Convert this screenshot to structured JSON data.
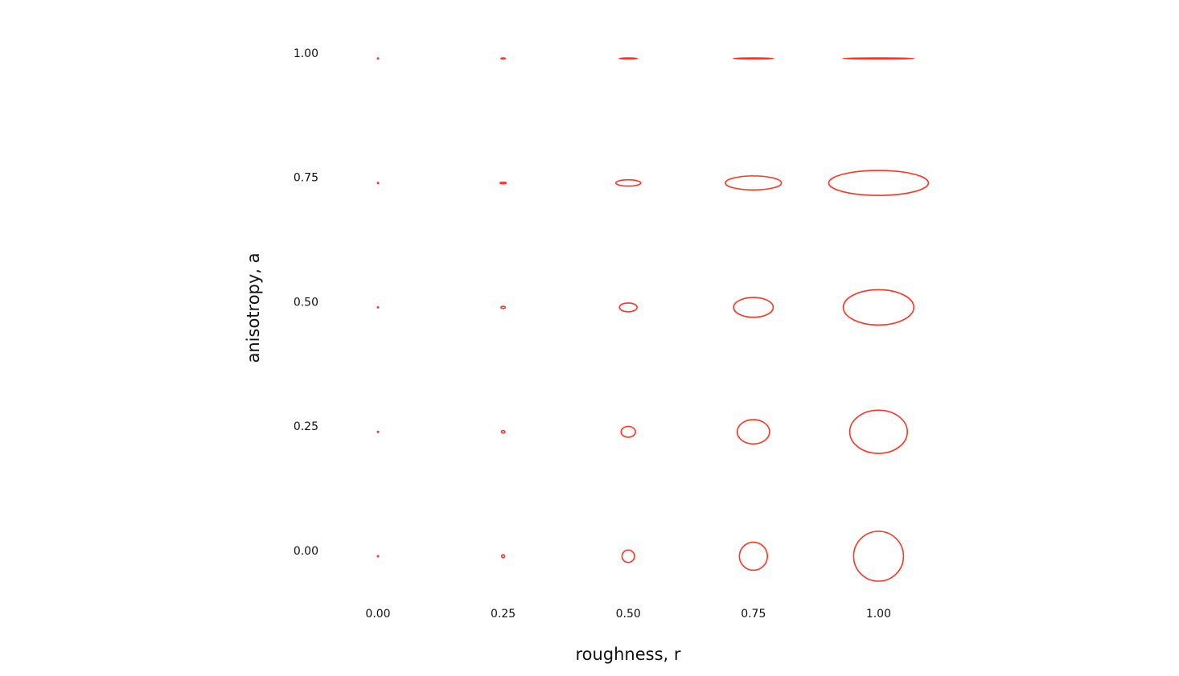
{
  "chart_data": {
    "type": "scatter",
    "title": "",
    "xlabel": "roughness, r",
    "ylabel": "anisotropy, a",
    "x_ticks": [
      "0.00",
      "0.25",
      "0.50",
      "0.75",
      "1.00"
    ],
    "y_ticks": [
      "0.00",
      "0.25",
      "0.50",
      "0.75",
      "1.00"
    ],
    "xlim": [
      -0.1,
      1.1
    ],
    "ylim": [
      -0.1,
      1.1
    ],
    "grid": false,
    "marker": "ellipse (x-extent = r²/√(1−a), y-extent = r²·√(1−a))",
    "stroke_color": "#ff3322",
    "points": [
      {
        "r": 0.0,
        "a": 0.0
      },
      {
        "r": 0.25,
        "a": 0.0
      },
      {
        "r": 0.5,
        "a": 0.0
      },
      {
        "r": 0.75,
        "a": 0.0
      },
      {
        "r": 1.0,
        "a": 0.0
      },
      {
        "r": 0.0,
        "a": 0.25
      },
      {
        "r": 0.25,
        "a": 0.25
      },
      {
        "r": 0.5,
        "a": 0.25
      },
      {
        "r": 0.75,
        "a": 0.25
      },
      {
        "r": 1.0,
        "a": 0.25
      },
      {
        "r": 0.0,
        "a": 0.5
      },
      {
        "r": 0.25,
        "a": 0.5
      },
      {
        "r": 0.5,
        "a": 0.5
      },
      {
        "r": 0.75,
        "a": 0.5
      },
      {
        "r": 1.0,
        "a": 0.5
      },
      {
        "r": 0.0,
        "a": 0.75
      },
      {
        "r": 0.25,
        "a": 0.75
      },
      {
        "r": 0.5,
        "a": 0.75
      },
      {
        "r": 0.75,
        "a": 0.75
      },
      {
        "r": 1.0,
        "a": 0.75
      },
      {
        "r": 0.0,
        "a": 1.0
      },
      {
        "r": 0.25,
        "a": 1.0
      },
      {
        "r": 0.5,
        "a": 1.0
      },
      {
        "r": 0.75,
        "a": 1.0
      },
      {
        "r": 1.0,
        "a": 1.0
      }
    ]
  }
}
